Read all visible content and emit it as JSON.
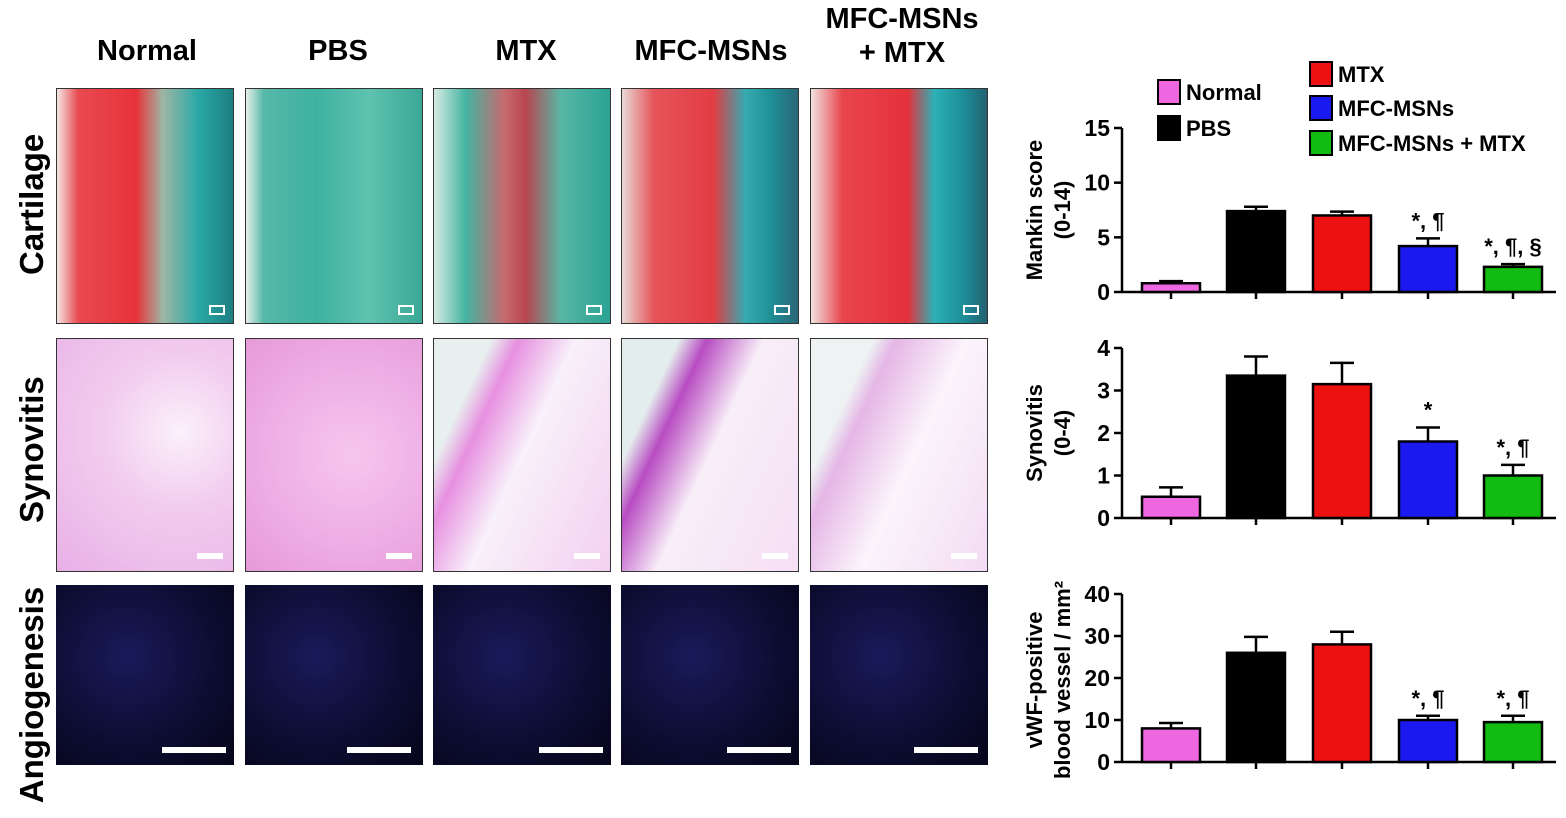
{
  "columns": [
    "Normal",
    "PBS",
    "MTX",
    "MFC-MSNs",
    "MFC-MSNs\n+ MTX"
  ],
  "rows": [
    "Cartilage",
    "Synovitis",
    "Angiogenesis"
  ],
  "colors": {
    "normal": "#ee66e0",
    "pbs": "#000000",
    "mtx": "#ee1111",
    "mfc": "#1a1af0",
    "combo": "#11bb11"
  },
  "chart_data": [
    {
      "type": "bar",
      "categories": [
        "Normal",
        "PBS",
        "MTX",
        "MFC-MSNs",
        "MFC-MSNs + MTX"
      ],
      "values": [
        0.8,
        7.4,
        7.0,
        4.2,
        2.3
      ],
      "errors": [
        0.2,
        0.4,
        0.35,
        0.7,
        0.25
      ],
      "annotations": [
        "",
        "",
        "",
        "*, ¶",
        "*, ¶, §"
      ],
      "ylabel": "Mankin score\n(0-14)",
      "ylim": [
        0,
        15
      ],
      "yticks": [
        0,
        5,
        10,
        15
      ]
    },
    {
      "type": "bar",
      "categories": [
        "Normal",
        "PBS",
        "MTX",
        "MFC-MSNs",
        "MFC-MSNs + MTX"
      ],
      "values": [
        0.5,
        3.35,
        3.15,
        1.8,
        1.0
      ],
      "errors": [
        0.22,
        0.45,
        0.5,
        0.33,
        0.25
      ],
      "annotations": [
        "",
        "",
        "",
        "*",
        "*, ¶"
      ],
      "ylabel": "Synovitis\n(0-4)",
      "ylim": [
        0,
        4
      ],
      "yticks": [
        0,
        1,
        2,
        3,
        4
      ]
    },
    {
      "type": "bar",
      "categories": [
        "Normal",
        "PBS",
        "MTX",
        "MFC-MSNs",
        "MFC-MSNs + MTX"
      ],
      "values": [
        8.0,
        26.0,
        28.0,
        10.0,
        9.5
      ],
      "errors": [
        1.3,
        3.8,
        3.0,
        1.0,
        1.5
      ],
      "annotations": [
        "",
        "",
        "",
        "*, ¶",
        "*, ¶"
      ],
      "ylabel": "vWF-positive\nblood vessel / mm²",
      "ylim": [
        0,
        40
      ],
      "yticks": [
        0,
        10,
        20,
        30,
        40
      ]
    }
  ],
  "legend": [
    "Normal",
    "PBS",
    "MTX",
    "MFC-MSNs",
    "MFC-MSNs + MTX"
  ]
}
